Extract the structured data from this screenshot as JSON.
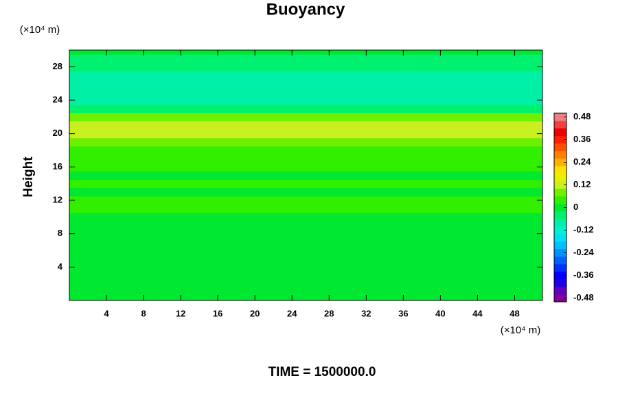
{
  "chart_data": {
    "type": "heatmap",
    "title": "Buoyancy",
    "ylabel": "Height",
    "y_unit_label": "(×10⁴ m)",
    "x_unit_label": "(×10⁴ m)",
    "time_label": "TIME = 1500000.0",
    "xlim": [
      0,
      51
    ],
    "ylim": [
      0,
      30
    ],
    "xticks": [
      4,
      8,
      12,
      16,
      20,
      24,
      28,
      32,
      36,
      40,
      44,
      48
    ],
    "yticks": [
      4,
      8,
      12,
      16,
      20,
      24,
      28
    ],
    "y": [
      0,
      1,
      2,
      3,
      4,
      5,
      6,
      7,
      8,
      9,
      10,
      11,
      12,
      13,
      14,
      15,
      16,
      17,
      18,
      19,
      20,
      21,
      22,
      23,
      24,
      25,
      26,
      27,
      28,
      29,
      30
    ],
    "values": [
      0,
      0,
      0,
      0,
      0,
      0,
      0,
      0,
      0,
      0,
      0,
      0.02,
      0.03,
      0.01,
      0.03,
      0.01,
      0.03,
      0.03,
      0.05,
      0.07,
      0.1,
      0.13,
      0.06,
      -0.05,
      -0.09,
      -0.1,
      -0.1,
      -0.09,
      -0.06,
      -0.03,
      -0.02
    ],
    "clim": [
      -0.5,
      0.5
    ],
    "colorbar_ticks": [
      0.48,
      0.36,
      0.24,
      0.12,
      0,
      -0.12,
      -0.24,
      -0.36,
      -0.48
    ],
    "colorbar_colors": [
      "#8000a0",
      "#6000c0",
      "#2000e0",
      "#0000ff",
      "#0030ff",
      "#0060ff",
      "#0090ff",
      "#00c0ff",
      "#00e0f0",
      "#00f0d8",
      "#00f0a8",
      "#00f070",
      "#00e830",
      "#30f000",
      "#70f000",
      "#c8f020",
      "#e8f000",
      "#ffe000",
      "#ffb000",
      "#ff8000",
      "#ff5000",
      "#ff2000",
      "#f00000",
      "#f04040",
      "#f08080"
    ]
  }
}
